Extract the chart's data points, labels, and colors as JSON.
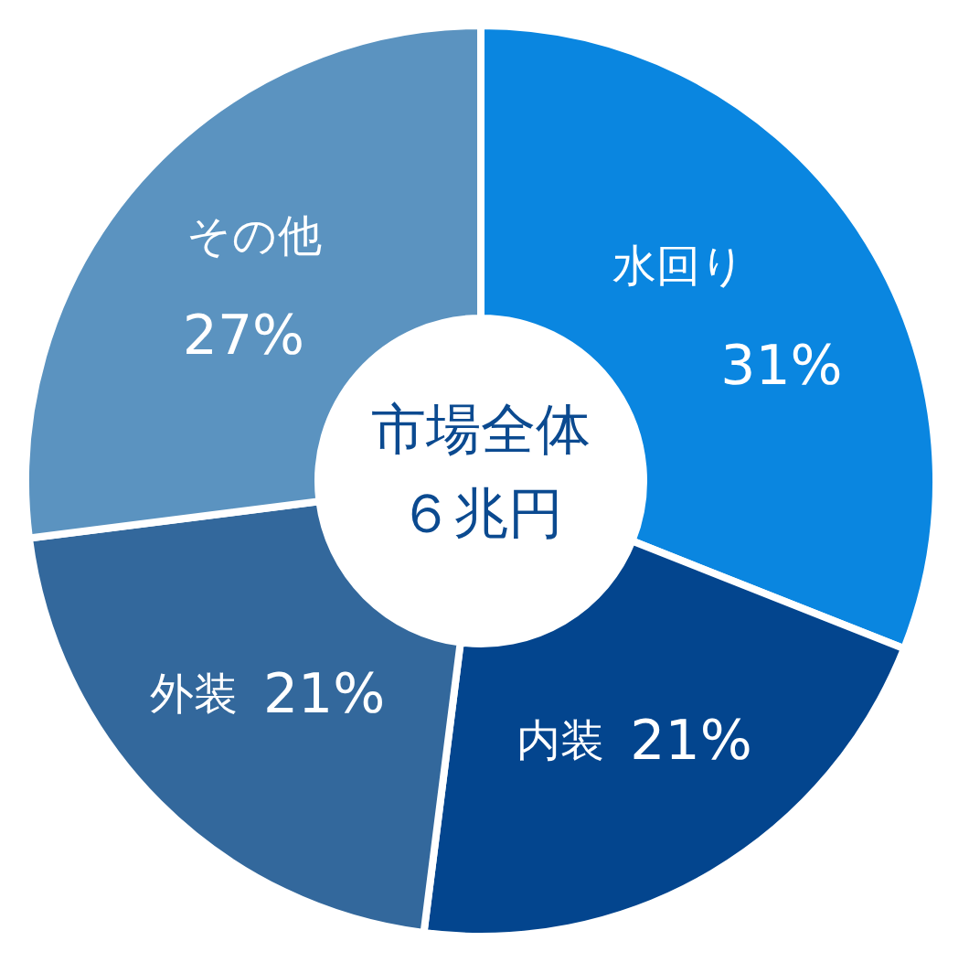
{
  "chart_data": {
    "type": "donut",
    "title": "市場全体",
    "subtitle": "６兆円",
    "categories": [
      "水回り",
      "内装",
      "外装",
      "その他"
    ],
    "values": [
      31,
      21,
      21,
      27
    ],
    "colors": [
      "#0a86e0",
      "#03458e",
      "#33689c",
      "#5b93c0"
    ],
    "value_labels": [
      "31%",
      "21%",
      "21%",
      "27%"
    ]
  }
}
